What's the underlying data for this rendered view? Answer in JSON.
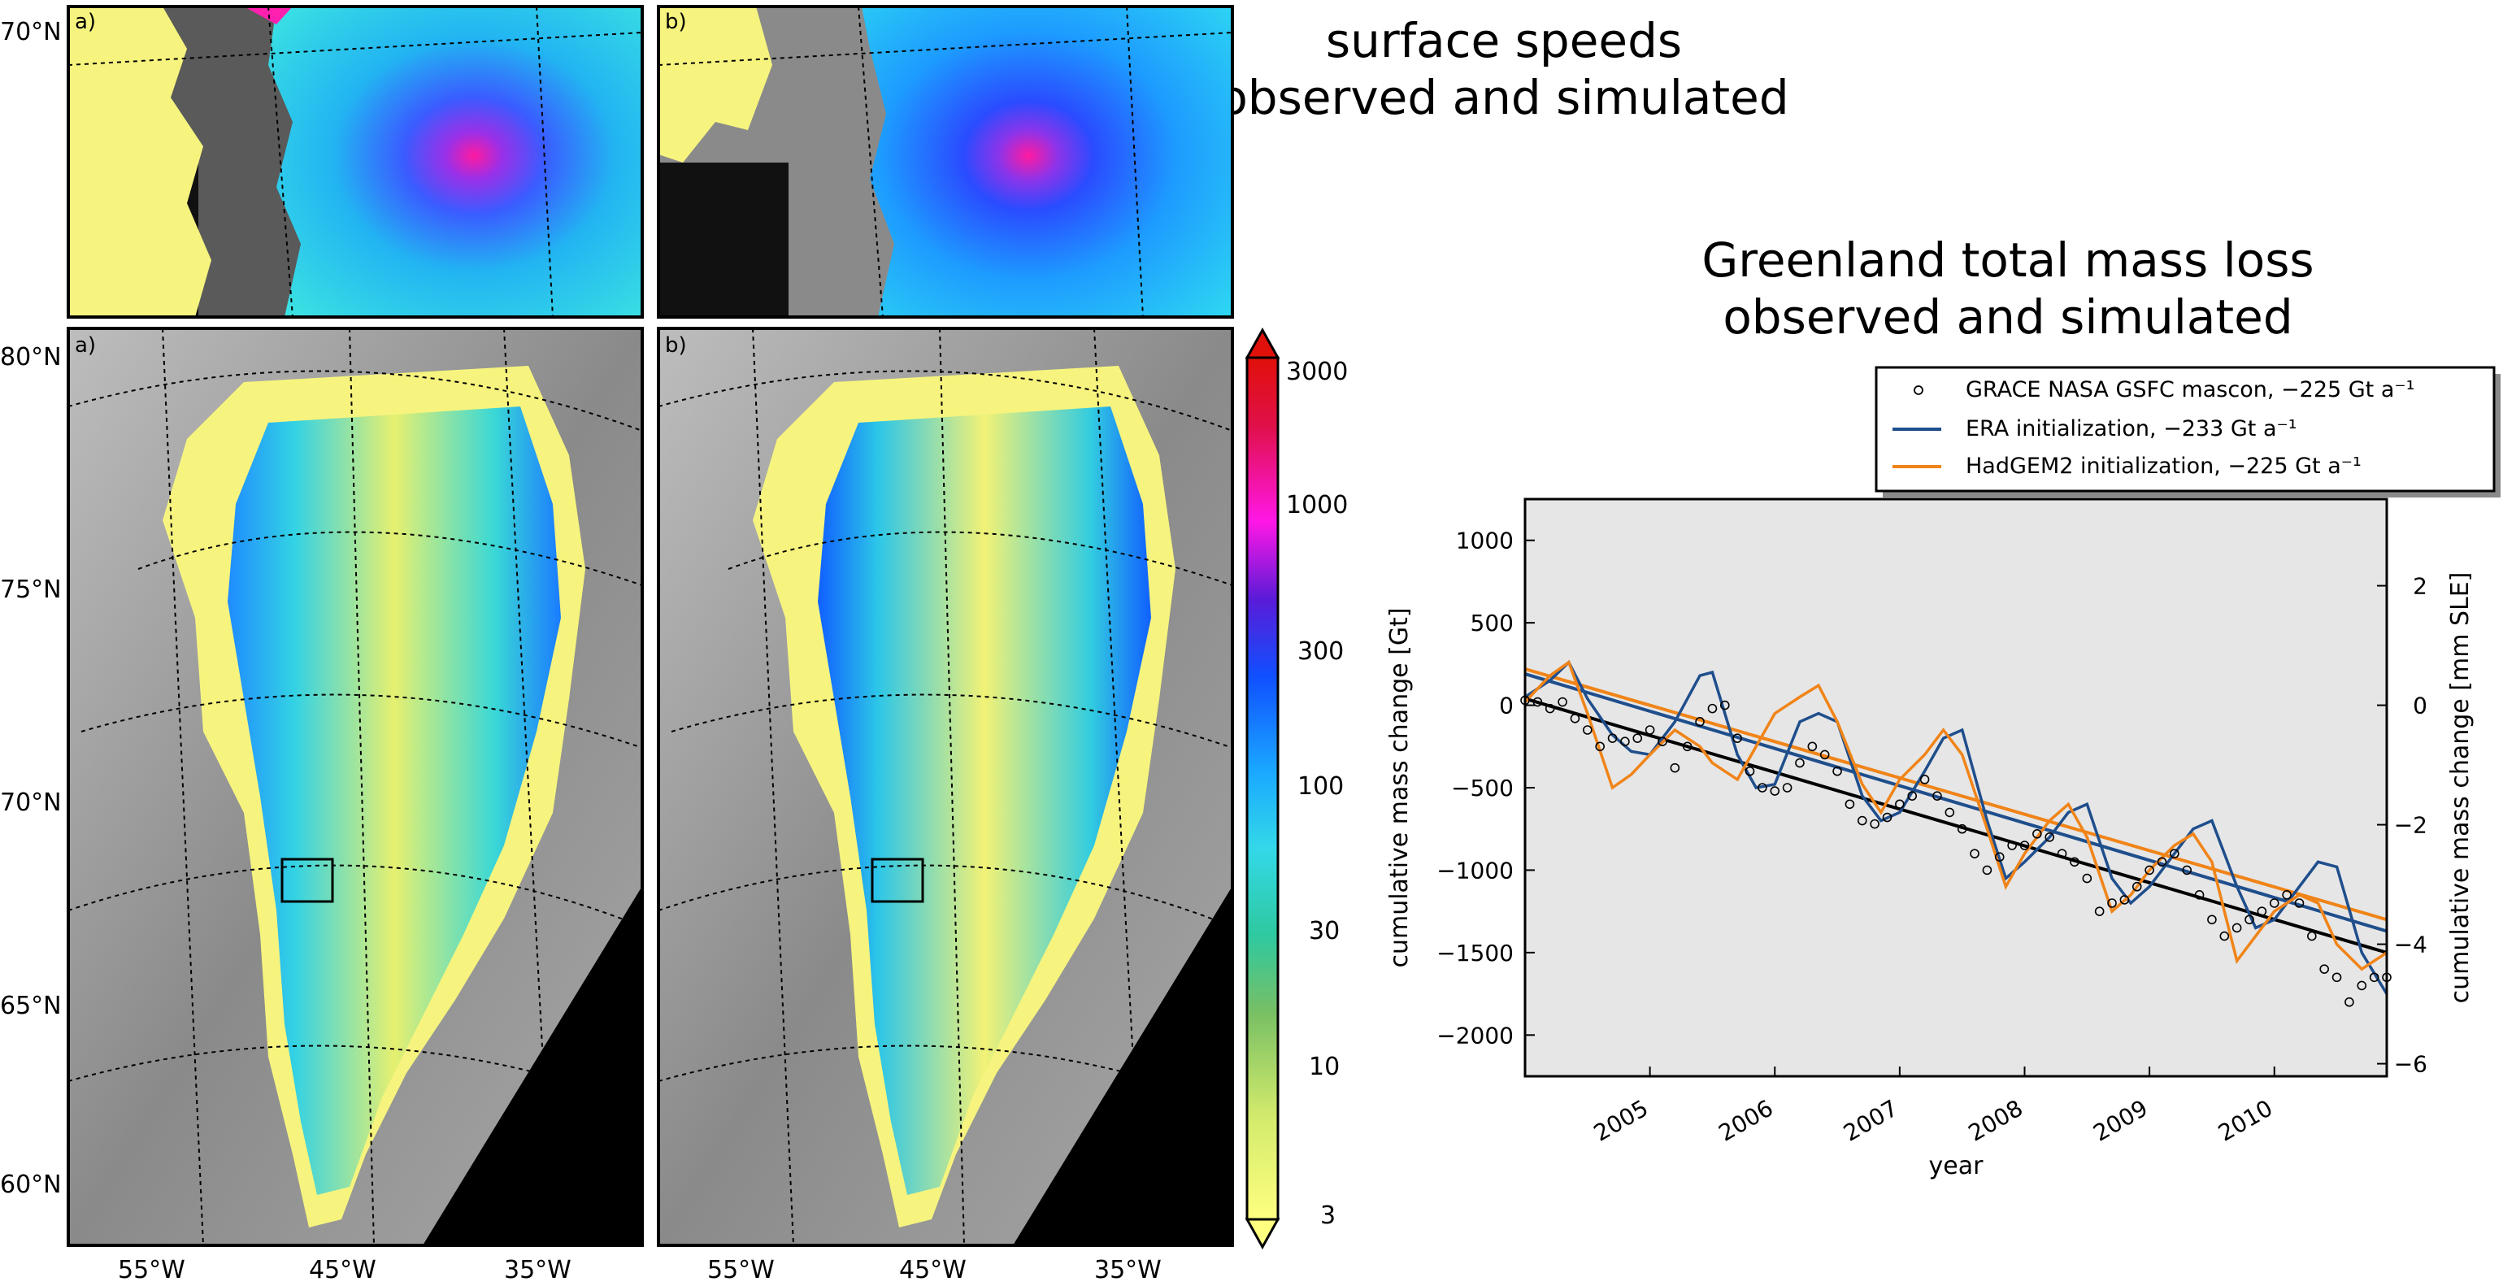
{
  "titles": {
    "speeds_line1": "surface speeds",
    "speeds_line2": "observed and simulated",
    "mass_line1": "Greenland total mass loss",
    "mass_line2": "observed and simulated"
  },
  "maps": {
    "panel_a": "a)",
    "panel_b": "b)",
    "lat_labels_top": [
      "70°N"
    ],
    "lat_labels_main": [
      "80°N",
      "75°N",
      "70°N",
      "65°N",
      "60°N"
    ],
    "lon_labels": [
      "55°W",
      "45°W",
      "35°W"
    ]
  },
  "colorbar": {
    "ticks": [
      "3000",
      "1000",
      "300",
      "100",
      "30",
      "10",
      "3"
    ],
    "colors": [
      "#ffff80",
      "#d2ea6c",
      "#78bf64",
      "#2ec9a0",
      "#33d8e8",
      "#1aa8ff",
      "#1050ff",
      "#5a1bd8",
      "#ff17e6",
      "#e0104a",
      "#e0100a"
    ]
  },
  "chart_data": {
    "type": "line",
    "xlabel": "year",
    "ylabel": "cumulative mass change [Gt]",
    "ylabel_right": "cumulative mass change [mm SLE]",
    "xlim": [
      2004.0,
      2010.9
    ],
    "ylim": [
      -2250,
      1250
    ],
    "ylim_right": [
      -6.21,
      3.45
    ],
    "x_ticks": [
      2005,
      2006,
      2007,
      2008,
      2009,
      2010
    ],
    "x_tick_labels": [
      "2005",
      "2006",
      "2007",
      "2008",
      "2009",
      "2010"
    ],
    "y_ticks": [
      1000,
      500,
      0,
      -500,
      -1000,
      -1500,
      -2000
    ],
    "y_tick_labels": [
      "1000",
      "500",
      "0",
      "−500",
      "−1000",
      "−1500",
      "−2000"
    ],
    "y_right_ticks": [
      2,
      0,
      -2,
      -4,
      -6
    ],
    "y_right_tick_labels": [
      "2",
      "0",
      "−2",
      "−4",
      "−6"
    ],
    "legend_position": "top-right",
    "legend": [
      "GRACE NASA GSFC mascon, −225 Gt a⁻¹",
      "ERA initialization, −233 Gt a⁻¹",
      "HadGEM2 initialization, −225 Gt a⁻¹"
    ],
    "colors": {
      "grace": "#000000",
      "era": "#1f4e8c",
      "hadgem": "#f08418",
      "fit_black": "#000000",
      "plot_bg": "#e6e6e6"
    },
    "series": [
      {
        "name": "GRACE NASA GSFC mascon, −225 Gt a⁻¹",
        "style": "markers",
        "x": [
          2004.0,
          2004.1,
          2004.2,
          2004.3,
          2004.4,
          2004.5,
          2004.6,
          2004.7,
          2004.8,
          2004.9,
          2005.0,
          2005.1,
          2005.2,
          2005.3,
          2005.4,
          2005.5,
          2005.6,
          2005.7,
          2005.8,
          2005.9,
          2006.0,
          2006.1,
          2006.2,
          2006.3,
          2006.4,
          2006.5,
          2006.6,
          2006.7,
          2006.8,
          2006.9,
          2007.0,
          2007.1,
          2007.2,
          2007.3,
          2007.4,
          2007.5,
          2007.6,
          2007.7,
          2007.8,
          2007.9,
          2008.0,
          2008.1,
          2008.2,
          2008.3,
          2008.4,
          2008.5,
          2008.6,
          2008.7,
          2008.8,
          2008.9,
          2009.0,
          2009.1,
          2009.2,
          2009.3,
          2009.4,
          2009.5,
          2009.6,
          2009.7,
          2009.8,
          2009.9,
          2010.0,
          2010.1,
          2010.2,
          2010.3,
          2010.4,
          2010.5,
          2010.6,
          2010.7,
          2010.8,
          2010.9
        ],
        "y": [
          30,
          20,
          -20,
          20,
          -80,
          -150,
          -250,
          -200,
          -220,
          -200,
          -150,
          -220,
          -380,
          -250,
          -100,
          -20,
          0,
          -200,
          -400,
          -500,
          -520,
          -500,
          -350,
          -250,
          -300,
          -400,
          -600,
          -700,
          -720,
          -680,
          -600,
          -550,
          -450,
          -550,
          -650,
          -750,
          -900,
          -1000,
          -920,
          -850,
          -850,
          -780,
          -800,
          -900,
          -950,
          -1050,
          -1250,
          -1200,
          -1180,
          -1100,
          -1000,
          -950,
          -900,
          -1000,
          -1150,
          -1300,
          -1400,
          -1350,
          -1300,
          -1250,
          -1200,
          -1150,
          -1200,
          -1400,
          -1600,
          -1650,
          -1800,
          -1700,
          -1650,
          -1650
        ]
      },
      {
        "name": "ERA initialization, −233 Gt a⁻¹",
        "style": "line",
        "x": [
          2004.0,
          2004.2,
          2004.35,
          2004.5,
          2004.7,
          2004.85,
          2005.0,
          2005.2,
          2005.4,
          2005.5,
          2005.7,
          2005.85,
          2006.0,
          2006.2,
          2006.35,
          2006.5,
          2006.7,
          2006.85,
          2007.0,
          2007.2,
          2007.35,
          2007.5,
          2007.7,
          2007.85,
          2008.0,
          2008.2,
          2008.35,
          2008.5,
          2008.7,
          2008.85,
          2009.0,
          2009.2,
          2009.35,
          2009.5,
          2009.7,
          2009.85,
          2010.0,
          2010.2,
          2010.35,
          2010.5,
          2010.7,
          2010.9
        ],
        "y": [
          50,
          150,
          260,
          40,
          -180,
          -280,
          -300,
          -100,
          180,
          200,
          -300,
          -500,
          -480,
          -100,
          -50,
          -100,
          -550,
          -700,
          -650,
          -400,
          -200,
          -150,
          -700,
          -1050,
          -950,
          -800,
          -650,
          -600,
          -1050,
          -1200,
          -1100,
          -900,
          -750,
          -700,
          -1100,
          -1350,
          -1300,
          -1100,
          -950,
          -980,
          -1500,
          -1750
        ]
      },
      {
        "name": "HadGEM2 initialization, −225 Gt a⁻¹",
        "style": "line",
        "x": [
          2004.0,
          2004.2,
          2004.35,
          2004.5,
          2004.7,
          2004.85,
          2005.0,
          2005.2,
          2005.4,
          2005.5,
          2005.7,
          2005.85,
          2006.0,
          2006.2,
          2006.35,
          2006.5,
          2006.7,
          2006.85,
          2007.0,
          2007.2,
          2007.35,
          2007.5,
          2007.7,
          2007.85,
          2008.0,
          2008.2,
          2008.35,
          2008.5,
          2008.7,
          2008.85,
          2009.0,
          2009.2,
          2009.35,
          2009.5,
          2009.7,
          2009.85,
          2010.0,
          2010.2,
          2010.35,
          2010.5,
          2010.7,
          2010.9
        ],
        "y": [
          20,
          180,
          260,
          -50,
          -500,
          -420,
          -300,
          -150,
          -250,
          -350,
          -450,
          -250,
          -50,
          50,
          120,
          -100,
          -480,
          -650,
          -450,
          -300,
          -150,
          -300,
          -750,
          -1100,
          -900,
          -700,
          -600,
          -800,
          -1250,
          -1150,
          -1000,
          -850,
          -780,
          -950,
          -1550,
          -1400,
          -1250,
          -1150,
          -1200,
          -1450,
          -1600,
          -1500
        ]
      }
    ],
    "trend_lines": [
      {
        "series": "ERA initialization, −233 Gt a⁻¹",
        "x": [
          2004.0,
          2010.9
        ],
        "y": [
          190,
          -1370
        ]
      },
      {
        "series": "HadGEM2 initialization, −225 Gt a⁻¹",
        "x": [
          2004.0,
          2010.9
        ],
        "y": [
          220,
          -1300
        ]
      },
      {
        "series": "GRACE NASA GSFC mascon, −225 Gt a⁻¹",
        "x": [
          2004.0,
          2010.9
        ],
        "y": [
          40,
          -1500
        ]
      }
    ]
  }
}
